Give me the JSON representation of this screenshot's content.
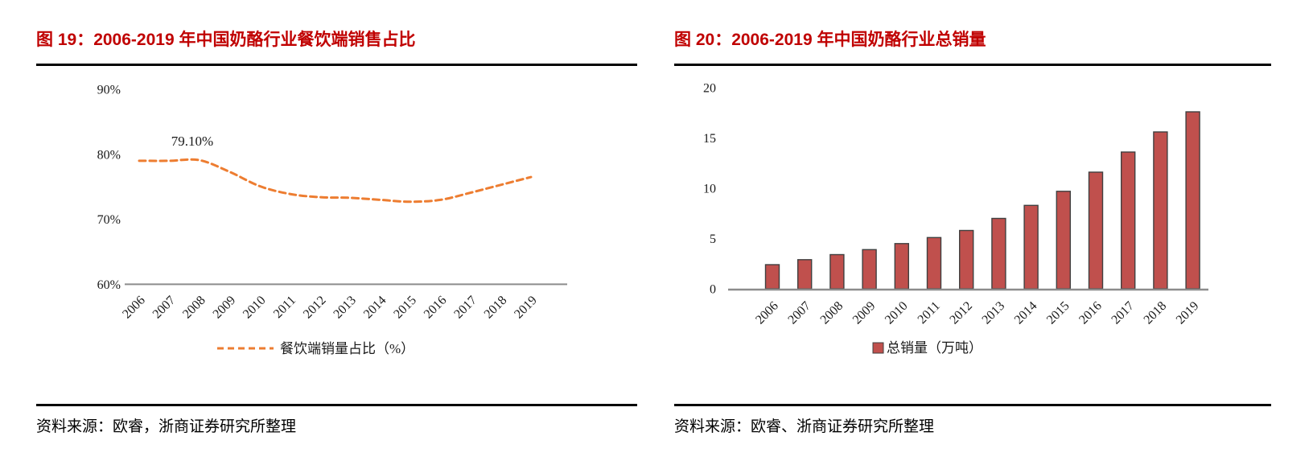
{
  "accent_title_color": "#C00000",
  "chart_data": [
    {
      "type": "line",
      "title": "图 19：2006-2019 年中国奶酪行业餐饮端销售占比",
      "categories": [
        "2006",
        "2007",
        "2008",
        "2009",
        "2010",
        "2011",
        "2012",
        "2013",
        "2014",
        "2015",
        "2016",
        "2017",
        "2018",
        "2019"
      ],
      "series": [
        {
          "name": "餐饮端销量占比（%）",
          "values": [
            79.0,
            79.0,
            79.1,
            77.3,
            75.1,
            73.9,
            73.4,
            73.3,
            73.0,
            72.7,
            73.0,
            74.1,
            75.3,
            76.5
          ]
        }
      ],
      "annotation": {
        "text": "79.10%",
        "category": "2008"
      },
      "xlabel": "",
      "ylabel": "",
      "ylim": [
        60,
        90
      ],
      "ytick_values": [
        90,
        80,
        70,
        60
      ],
      "ytick_labels": [
        "90%",
        "80%",
        "70%",
        "60%"
      ],
      "grid": false,
      "legend_position": "bottom",
      "line_color": "#ED7D31",
      "line_style": "dashed",
      "axis_color": "#8C8C8C",
      "source": "资料来源：欧睿，浙商证券研究所整理"
    },
    {
      "type": "bar",
      "title": "图 20：2006-2019 年中国奶酪行业总销量",
      "categories": [
        "2006",
        "2007",
        "2008",
        "2009",
        "2010",
        "2011",
        "2012",
        "2013",
        "2014",
        "2015",
        "2016",
        "2017",
        "2018",
        "2019"
      ],
      "series": [
        {
          "name": "总销量（万吨）",
          "values": [
            2.4,
            2.9,
            3.4,
            3.9,
            4.5,
            5.1,
            5.8,
            7.0,
            8.3,
            9.7,
            11.6,
            13.6,
            15.6,
            17.6
          ]
        }
      ],
      "xlabel": "",
      "ylabel": "",
      "ylim": [
        0,
        20
      ],
      "ytick_values": [
        20,
        15,
        10,
        5,
        0
      ],
      "ytick_labels": [
        "20",
        "15",
        "10",
        "5",
        "0"
      ],
      "grid": false,
      "legend_position": "bottom",
      "bar_color": "#C0504D",
      "bar_border": "#404040",
      "axis_color": "#8C8C8C",
      "source": "资料来源：欧睿、浙商证券研究所整理"
    }
  ]
}
